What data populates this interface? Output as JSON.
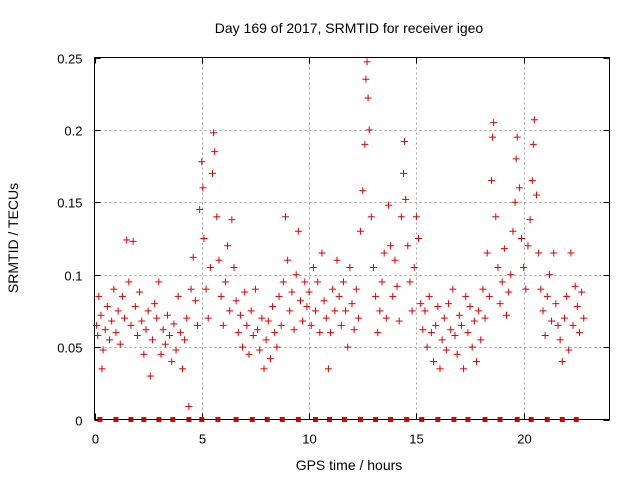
{
  "chart_data": {
    "type": "scatter",
    "title": "Day 169 of 2017, SRMTID for receiver igeo",
    "xlabel": "GPS time / hours",
    "ylabel": "SRMTID / TECUs",
    "xlim": [
      0,
      24
    ],
    "ylim": [
      0,
      0.25
    ],
    "x_ticks": [
      0,
      5,
      10,
      15,
      20
    ],
    "x_tick_labels": [
      "0",
      "5",
      "10",
      "15",
      "20"
    ],
    "y_ticks": [
      0,
      0.05,
      0.1,
      0.15,
      0.2,
      0.25
    ],
    "y_tick_labels": [
      "0",
      "0.05",
      "0.1",
      "0.15",
      "0.2",
      "0.25"
    ],
    "grid": true,
    "marker": "+",
    "marker_color": "#e00000",
    "zero_markers_x": [
      0.25,
      1.0,
      1.7,
      2.3,
      3.0,
      3.65,
      4.4,
      5.0,
      5.75,
      6.6,
      7.35,
      8.05,
      8.75,
      9.5,
      10.3,
      10.95,
      11.65,
      12.4,
      13.1,
      13.8,
      14.55,
      15.25,
      16.0,
      16.75,
      17.4,
      18.2,
      18.9,
      19.7,
      20.35,
      21.1,
      21.8,
      22.45
    ],
    "series": [
      {
        "name": "SRMTID",
        "points": [
          [
            0.1,
            0.065
          ],
          [
            0.15,
            0.058
          ],
          [
            0.2,
            0.085
          ],
          [
            0.3,
            0.072
          ],
          [
            0.35,
            0.035
          ],
          [
            0.4,
            0.048
          ],
          [
            0.5,
            0.062
          ],
          [
            0.6,
            0.078
          ],
          [
            0.7,
            0.055
          ],
          [
            0.8,
            0.068
          ],
          [
            0.9,
            0.09
          ],
          [
            1.0,
            0.06
          ],
          [
            1.1,
            0.075
          ],
          [
            1.2,
            0.052
          ],
          [
            1.3,
            0.085
          ],
          [
            1.4,
            0.07
          ],
          [
            1.5,
            0.124
          ],
          [
            1.6,
            0.095
          ],
          [
            1.7,
            0.065
          ],
          [
            1.8,
            0.123
          ],
          [
            1.9,
            0.078
          ],
          [
            2.0,
            0.058
          ],
          [
            2.1,
            0.088
          ],
          [
            2.2,
            0.068
          ],
          [
            2.3,
            0.045
          ],
          [
            2.4,
            0.062
          ],
          [
            2.5,
            0.075
          ],
          [
            2.6,
            0.03
          ],
          [
            2.7,
            0.055
          ],
          [
            2.8,
            0.08
          ],
          [
            2.9,
            0.07
          ],
          [
            3.0,
            0.095
          ],
          [
            3.1,
            0.045
          ],
          [
            3.2,
            0.062
          ],
          [
            3.3,
            0.052
          ],
          [
            3.4,
            0.072
          ],
          [
            3.5,
            0.058
          ],
          [
            3.6,
            0.04
          ],
          [
            3.7,
            0.066
          ],
          [
            3.8,
            0.048
          ],
          [
            3.9,
            0.085
          ],
          [
            4.0,
            0.06
          ],
          [
            4.1,
            0.035
          ],
          [
            4.2,
            0.055
          ],
          [
            4.3,
            0.07
          ],
          [
            4.4,
            0.009
          ],
          [
            4.5,
            0.09
          ],
          [
            4.6,
            0.112
          ],
          [
            4.7,
            0.082
          ],
          [
            4.8,
            0.065
          ],
          [
            4.9,
            0.145
          ],
          [
            5.0,
            0.178
          ],
          [
            5.05,
            0.16
          ],
          [
            5.1,
            0.125
          ],
          [
            5.2,
            0.09
          ],
          [
            5.3,
            0.07
          ],
          [
            5.4,
            0.105
          ],
          [
            5.5,
            0.17
          ],
          [
            5.55,
            0.198
          ],
          [
            5.6,
            0.185
          ],
          [
            5.7,
            0.14
          ],
          [
            5.8,
            0.11
          ],
          [
            5.9,
            0.085
          ],
          [
            6.0,
            0.065
          ],
          [
            6.1,
            0.095
          ],
          [
            6.2,
            0.12
          ],
          [
            6.3,
            0.075
          ],
          [
            6.4,
            0.138
          ],
          [
            6.5,
            0.105
          ],
          [
            6.6,
            0.082
          ],
          [
            6.7,
            0.06
          ],
          [
            6.8,
            0.072
          ],
          [
            6.9,
            0.05
          ],
          [
            7.0,
            0.088
          ],
          [
            7.1,
            0.065
          ],
          [
            7.2,
            0.045
          ],
          [
            7.3,
            0.075
          ],
          [
            7.4,
            0.058
          ],
          [
            7.5,
            0.09
          ],
          [
            7.6,
            0.062
          ],
          [
            7.7,
            0.048
          ],
          [
            7.8,
            0.07
          ],
          [
            7.9,
            0.035
          ],
          [
            8.0,
            0.055
          ],
          [
            8.1,
            0.068
          ],
          [
            8.2,
            0.042
          ],
          [
            8.3,
            0.078
          ],
          [
            8.4,
            0.06
          ],
          [
            8.5,
            0.05
          ],
          [
            8.6,
            0.085
          ],
          [
            8.7,
            0.065
          ],
          [
            8.8,
            0.095
          ],
          [
            8.9,
            0.14
          ],
          [
            9.0,
            0.11
          ],
          [
            9.1,
            0.075
          ],
          [
            9.2,
            0.088
          ],
          [
            9.3,
            0.062
          ],
          [
            9.4,
            0.1
          ],
          [
            9.5,
            0.13
          ],
          [
            9.6,
            0.082
          ],
          [
            9.7,
            0.068
          ],
          [
            9.8,
            0.095
          ],
          [
            9.9,
            0.078
          ],
          [
            10.0,
            0.088
          ],
          [
            10.1,
            0.065
          ],
          [
            10.2,
            0.105
          ],
          [
            10.3,
            0.075
          ],
          [
            10.4,
            0.095
          ],
          [
            10.5,
            0.06
          ],
          [
            10.6,
            0.115
          ],
          [
            10.7,
            0.082
          ],
          [
            10.8,
            0.07
          ],
          [
            10.9,
            0.035
          ],
          [
            11.0,
            0.06
          ],
          [
            11.1,
            0.09
          ],
          [
            11.2,
            0.075
          ],
          [
            11.3,
            0.11
          ],
          [
            11.4,
            0.085
          ],
          [
            11.5,
            0.065
          ],
          [
            11.6,
            0.095
          ],
          [
            11.7,
            0.075
          ],
          [
            11.8,
            0.05
          ],
          [
            11.9,
            0.105
          ],
          [
            12.0,
            0.08
          ],
          [
            12.1,
            0.062
          ],
          [
            12.2,
            0.09
          ],
          [
            12.3,
            0.07
          ],
          [
            12.4,
            0.13
          ],
          [
            12.5,
            0.158
          ],
          [
            12.6,
            0.19
          ],
          [
            12.65,
            0.235
          ],
          [
            12.7,
            0.247
          ],
          [
            12.75,
            0.222
          ],
          [
            12.8,
            0.2
          ],
          [
            12.9,
            0.14
          ],
          [
            13.0,
            0.105
          ],
          [
            13.1,
            0.085
          ],
          [
            13.2,
            0.06
          ],
          [
            13.3,
            0.075
          ],
          [
            13.4,
            0.095
          ],
          [
            13.5,
            0.115
          ],
          [
            13.6,
            0.07
          ],
          [
            13.7,
            0.148
          ],
          [
            13.8,
            0.12
          ],
          [
            13.9,
            0.085
          ],
          [
            14.0,
            0.11
          ],
          [
            14.1,
            0.092
          ],
          [
            14.2,
            0.068
          ],
          [
            14.3,
            0.14
          ],
          [
            14.4,
            0.17
          ],
          [
            14.45,
            0.192
          ],
          [
            14.5,
            0.152
          ],
          [
            14.6,
            0.12
          ],
          [
            14.7,
            0.095
          ],
          [
            14.8,
            0.075
          ],
          [
            14.9,
            0.105
          ],
          [
            15.0,
            0.14
          ],
          [
            15.1,
            0.125
          ],
          [
            15.2,
            0.08
          ],
          [
            15.3,
            0.062
          ],
          [
            15.4,
            0.075
          ],
          [
            15.5,
            0.05
          ],
          [
            15.6,
            0.085
          ],
          [
            15.7,
            0.06
          ],
          [
            15.8,
            0.04
          ],
          [
            15.9,
            0.065
          ],
          [
            16.0,
            0.078
          ],
          [
            16.1,
            0.035
          ],
          [
            16.2,
            0.055
          ],
          [
            16.3,
            0.07
          ],
          [
            16.4,
            0.048
          ],
          [
            16.5,
            0.08
          ],
          [
            16.6,
            0.062
          ],
          [
            16.7,
            0.09
          ],
          [
            16.8,
            0.058
          ],
          [
            16.9,
            0.045
          ],
          [
            17.0,
            0.072
          ],
          [
            17.1,
            0.065
          ],
          [
            17.2,
            0.035
          ],
          [
            17.3,
            0.085
          ],
          [
            17.4,
            0.06
          ],
          [
            17.5,
            0.078
          ],
          [
            17.6,
            0.05
          ],
          [
            17.7,
            0.068
          ],
          [
            17.8,
            0.04
          ],
          [
            17.9,
            0.075
          ],
          [
            18.0,
            0.055
          ],
          [
            18.1,
            0.09
          ],
          [
            18.2,
            0.07
          ],
          [
            18.3,
            0.115
          ],
          [
            18.4,
            0.085
          ],
          [
            18.5,
            0.165
          ],
          [
            18.55,
            0.195
          ],
          [
            18.6,
            0.205
          ],
          [
            18.7,
            0.14
          ],
          [
            18.8,
            0.105
          ],
          [
            18.9,
            0.08
          ],
          [
            19.0,
            0.095
          ],
          [
            19.1,
            0.118
          ],
          [
            19.2,
            0.072
          ],
          [
            19.3,
            0.088
          ],
          [
            19.4,
            0.1
          ],
          [
            19.5,
            0.13
          ],
          [
            19.6,
            0.15
          ],
          [
            19.65,
            0.18
          ],
          [
            19.7,
            0.195
          ],
          [
            19.8,
            0.16
          ],
          [
            19.9,
            0.125
          ],
          [
            20.0,
            0.105
          ],
          [
            20.1,
            0.09
          ],
          [
            20.2,
            0.12
          ],
          [
            20.3,
            0.138
          ],
          [
            20.4,
            0.165
          ],
          [
            20.45,
            0.19
          ],
          [
            20.5,
            0.207
          ],
          [
            20.6,
            0.155
          ],
          [
            20.7,
            0.115
          ],
          [
            20.8,
            0.09
          ],
          [
            20.9,
            0.075
          ],
          [
            21.0,
            0.058
          ],
          [
            21.1,
            0.085
          ],
          [
            21.2,
            0.1
          ],
          [
            21.3,
            0.068
          ],
          [
            21.4,
            0.115
          ],
          [
            21.5,
            0.08
          ],
          [
            21.6,
            0.065
          ],
          [
            21.7,
            0.055
          ],
          [
            21.8,
            0.04
          ],
          [
            21.9,
            0.07
          ],
          [
            22.0,
            0.085
          ],
          [
            22.1,
            0.048
          ],
          [
            22.2,
            0.115
          ],
          [
            22.3,
            0.065
          ],
          [
            22.4,
            0.092
          ],
          [
            22.5,
            0.078
          ],
          [
            22.6,
            0.06
          ],
          [
            22.7,
            0.088
          ],
          [
            22.8,
            0.07
          ]
        ]
      }
    ]
  }
}
